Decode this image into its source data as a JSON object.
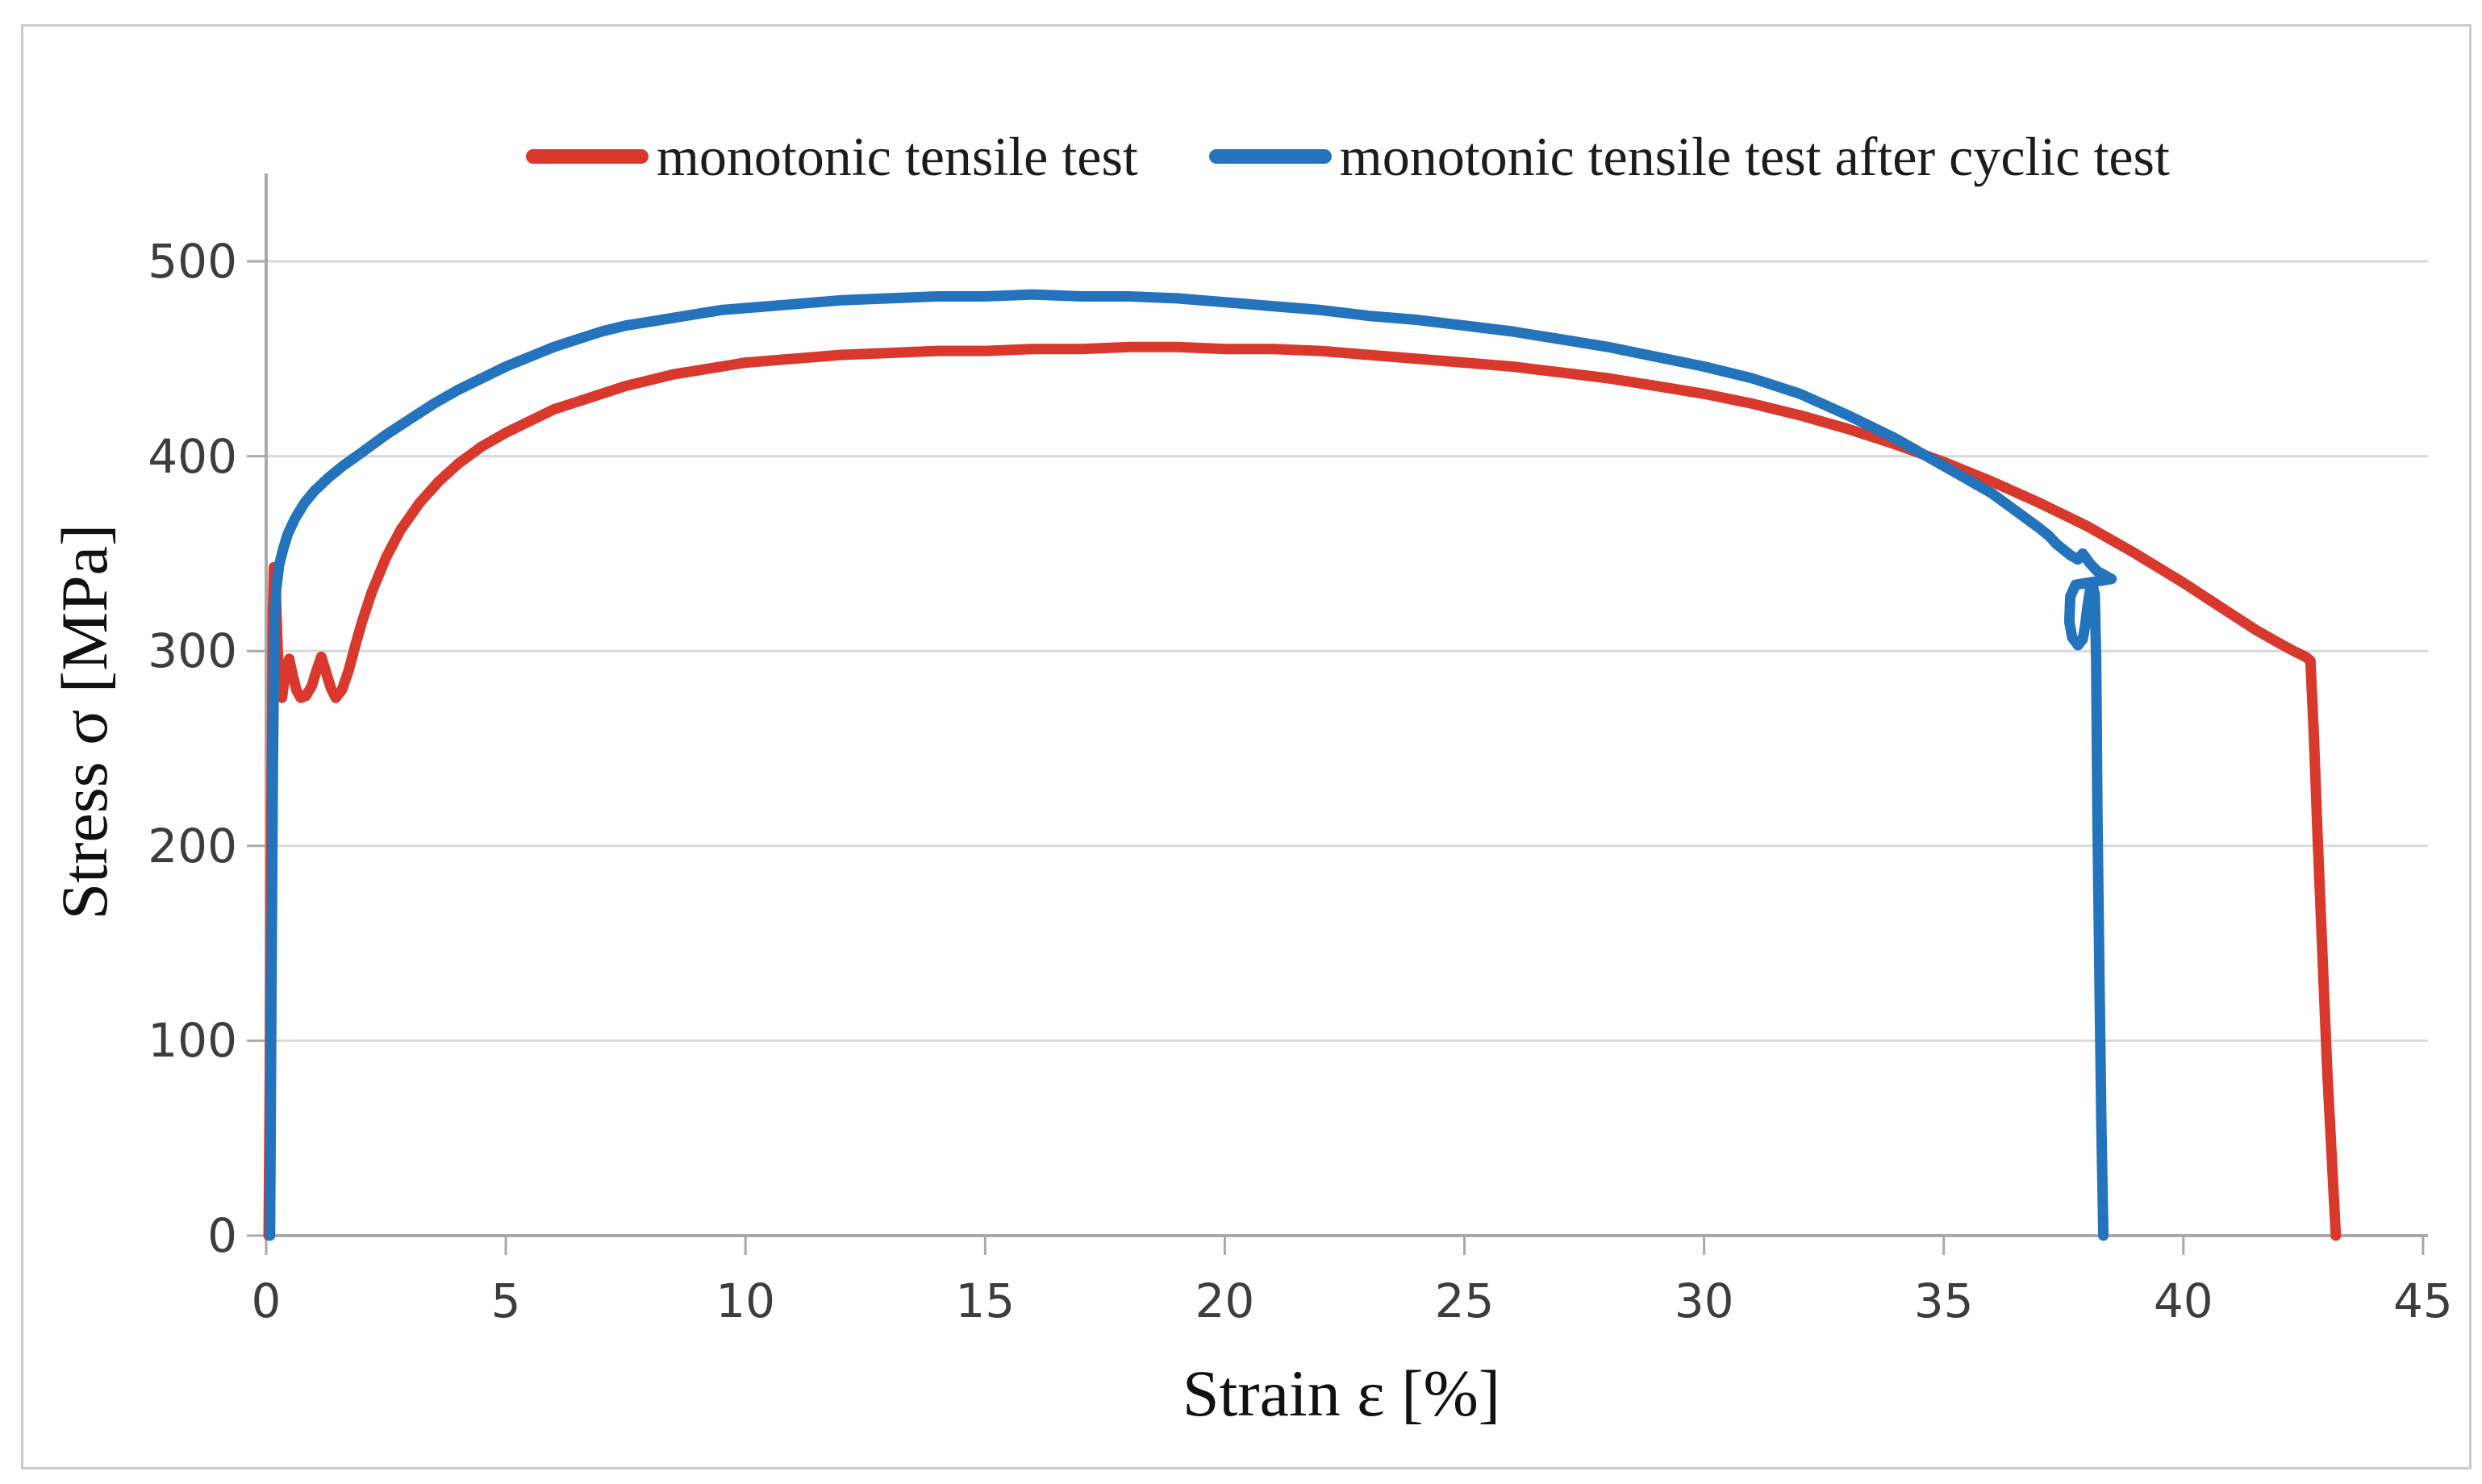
{
  "chart_data": {
    "type": "line",
    "title": "",
    "xlabel": "Strain ε [%]",
    "ylabel": "Stress σ [MPa]",
    "xlim": [
      0,
      45
    ],
    "ylim": [
      0,
      550
    ],
    "xticks": [
      0,
      5,
      10,
      15,
      20,
      25,
      30,
      35,
      40,
      45
    ],
    "yticks": [
      0,
      100,
      200,
      300,
      400,
      500
    ],
    "grid": "horizontal-only",
    "legend_position": "top",
    "series": [
      {
        "name": "monotonic tensile test",
        "color": "#d8392c",
        "points": [
          [
            0.05,
            0
          ],
          [
            0.08,
            100
          ],
          [
            0.11,
            220
          ],
          [
            0.14,
            320
          ],
          [
            0.16,
            343
          ],
          [
            0.2,
            331
          ],
          [
            0.24,
            300
          ],
          [
            0.28,
            281
          ],
          [
            0.33,
            276
          ],
          [
            0.4,
            289
          ],
          [
            0.48,
            296
          ],
          [
            0.55,
            288
          ],
          [
            0.63,
            280
          ],
          [
            0.72,
            276
          ],
          [
            0.83,
            277
          ],
          [
            0.95,
            282
          ],
          [
            1.05,
            290
          ],
          [
            1.15,
            297
          ],
          [
            1.25,
            289
          ],
          [
            1.35,
            281
          ],
          [
            1.45,
            276
          ],
          [
            1.58,
            280
          ],
          [
            1.72,
            290
          ],
          [
            1.85,
            302
          ],
          [
            2.0,
            315
          ],
          [
            2.2,
            330
          ],
          [
            2.5,
            348
          ],
          [
            2.8,
            362
          ],
          [
            3.2,
            376
          ],
          [
            3.6,
            387
          ],
          [
            4.0,
            396
          ],
          [
            4.5,
            405
          ],
          [
            5.0,
            412
          ],
          [
            5.5,
            418
          ],
          [
            6.0,
            424
          ],
          [
            6.5,
            428
          ],
          [
            7.0,
            432
          ],
          [
            7.5,
            436
          ],
          [
            8.0,
            439
          ],
          [
            8.5,
            442
          ],
          [
            9.0,
            444
          ],
          [
            9.5,
            446
          ],
          [
            10.0,
            448
          ],
          [
            11.0,
            450
          ],
          [
            12.0,
            452
          ],
          [
            13.0,
            453
          ],
          [
            14.0,
            454
          ],
          [
            15.0,
            454
          ],
          [
            16.0,
            455
          ],
          [
            17.0,
            455
          ],
          [
            18.0,
            456
          ],
          [
            19.0,
            456
          ],
          [
            20.0,
            455
          ],
          [
            21.0,
            455
          ],
          [
            22.0,
            454
          ],
          [
            23.0,
            452
          ],
          [
            24.0,
            450
          ],
          [
            25.0,
            448
          ],
          [
            26.0,
            446
          ],
          [
            27.0,
            443
          ],
          [
            28.0,
            440
          ],
          [
            29.0,
            436
          ],
          [
            30.0,
            432
          ],
          [
            31.0,
            427
          ],
          [
            32.0,
            421
          ],
          [
            33.0,
            414
          ],
          [
            34.0,
            406
          ],
          [
            35.0,
            397
          ],
          [
            36.0,
            387
          ],
          [
            37.0,
            376
          ],
          [
            38.0,
            364
          ],
          [
            39.0,
            350
          ],
          [
            40.0,
            335
          ],
          [
            40.5,
            327
          ],
          [
            41.0,
            319
          ],
          [
            41.5,
            311
          ],
          [
            42.0,
            304
          ],
          [
            42.3,
            300
          ],
          [
            42.55,
            297
          ],
          [
            42.65,
            295
          ],
          [
            42.72,
            258
          ],
          [
            42.8,
            205
          ],
          [
            42.9,
            145
          ],
          [
            43.0,
            85
          ],
          [
            43.1,
            38
          ],
          [
            43.18,
            0
          ]
        ]
      },
      {
        "name": "monotonic tensile test after cyclic test",
        "color": "#2473bd",
        "points": [
          [
            0.08,
            0
          ],
          [
            0.11,
            120
          ],
          [
            0.14,
            240
          ],
          [
            0.17,
            310
          ],
          [
            0.21,
            332
          ],
          [
            0.27,
            344
          ],
          [
            0.35,
            352
          ],
          [
            0.45,
            360
          ],
          [
            0.6,
            368
          ],
          [
            0.8,
            376
          ],
          [
            1.0,
            382
          ],
          [
            1.3,
            389
          ],
          [
            1.6,
            395
          ],
          [
            2.0,
            402
          ],
          [
            2.5,
            411
          ],
          [
            3.0,
            419
          ],
          [
            3.5,
            427
          ],
          [
            4.0,
            434
          ],
          [
            4.5,
            440
          ],
          [
            5.0,
            446
          ],
          [
            5.5,
            451
          ],
          [
            6.0,
            456
          ],
          [
            6.5,
            460
          ],
          [
            7.0,
            464
          ],
          [
            7.5,
            467
          ],
          [
            8.0,
            469
          ],
          [
            8.5,
            471
          ],
          [
            9.0,
            473
          ],
          [
            9.5,
            475
          ],
          [
            10.0,
            476
          ],
          [
            11.0,
            478
          ],
          [
            12.0,
            480
          ],
          [
            13.0,
            481
          ],
          [
            14.0,
            482
          ],
          [
            15.0,
            482
          ],
          [
            16.0,
            483
          ],
          [
            17.0,
            482
          ],
          [
            18.0,
            482
          ],
          [
            19.0,
            481
          ],
          [
            20.0,
            479
          ],
          [
            21.0,
            477
          ],
          [
            22.0,
            475
          ],
          [
            23.0,
            472
          ],
          [
            24.0,
            470
          ],
          [
            25.0,
            467
          ],
          [
            26.0,
            464
          ],
          [
            27.0,
            460
          ],
          [
            28.0,
            456
          ],
          [
            29.0,
            451
          ],
          [
            30.0,
            446
          ],
          [
            31.0,
            440
          ],
          [
            32.0,
            432
          ],
          [
            33.0,
            421
          ],
          [
            34.0,
            409
          ],
          [
            34.5,
            402
          ],
          [
            35.0,
            395
          ],
          [
            35.5,
            388
          ],
          [
            36.0,
            381
          ],
          [
            36.5,
            372
          ],
          [
            37.0,
            363
          ],
          [
            37.2,
            359
          ],
          [
            37.35,
            355
          ],
          [
            37.5,
            352
          ],
          [
            37.65,
            349
          ],
          [
            37.8,
            347
          ],
          [
            37.9,
            350
          ],
          [
            38.05,
            345
          ],
          [
            38.2,
            341
          ],
          [
            38.35,
            339
          ],
          [
            38.5,
            337
          ],
          [
            37.75,
            334
          ],
          [
            37.64,
            328
          ],
          [
            37.62,
            315
          ],
          [
            37.68,
            307
          ],
          [
            37.8,
            303
          ],
          [
            37.9,
            306
          ],
          [
            37.95,
            313
          ],
          [
            38.0,
            323
          ],
          [
            38.05,
            331
          ],
          [
            38.1,
            334
          ],
          [
            38.15,
            329
          ],
          [
            38.18,
            295
          ],
          [
            38.21,
            210
          ],
          [
            38.25,
            130
          ],
          [
            38.29,
            55
          ],
          [
            38.33,
            0
          ]
        ]
      }
    ]
  },
  "legend": {
    "items": [
      {
        "label": "monotonic tensile test",
        "color": "#d8392c"
      },
      {
        "label": "monotonic tensile test after cyclic test",
        "color": "#2473bd"
      }
    ]
  },
  "colors": {
    "series_red": "#d8392c",
    "series_blue": "#2473bd",
    "gridline": "#d9d9d9",
    "axis": "#a9a9a9",
    "tick_label": "#3d3d3d",
    "figure_border": "#cbcbcb"
  }
}
